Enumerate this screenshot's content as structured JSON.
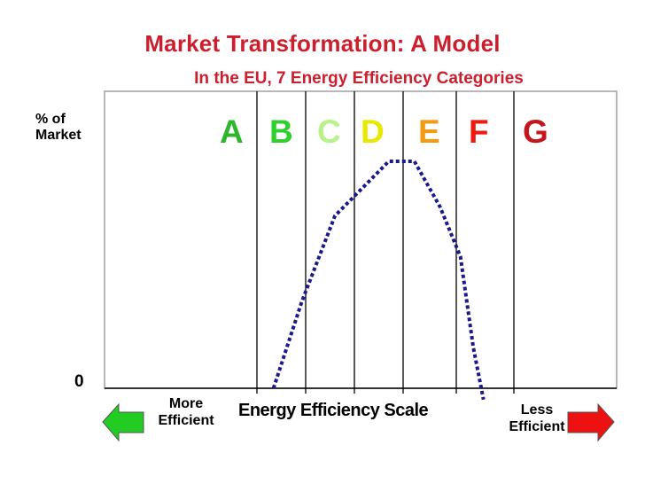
{
  "title": "Market Transformation: A Model",
  "subtitle": "In the EU, 7 Energy Efficiency Categories",
  "y_axis_label": "% of Market",
  "y_zero_label": "0",
  "x_axis_label": "Energy Efficiency Scale",
  "left_arrow_label": "More Efficient",
  "right_arrow_label": "Less Efficient",
  "categories": [
    {
      "letter": "A",
      "color": "#2db52d"
    },
    {
      "letter": "B",
      "color": "#2fcf2f"
    },
    {
      "letter": "C",
      "color": "#b8f28a"
    },
    {
      "letter": "D",
      "color": "#e8e800"
    },
    {
      "letter": "E",
      "color": "#f39a13"
    },
    {
      "letter": "F",
      "color": "#ee1c10"
    },
    {
      "letter": "G",
      "color": "#c3161d"
    }
  ],
  "colors": {
    "curve": "#1a1a8c",
    "left_arrow": "#22cc22",
    "right_arrow": "#ee1111",
    "axis": "#000000",
    "frame": "#a0a0a0"
  },
  "chart_data": {
    "type": "line",
    "series": [
      {
        "x": [
          3.3,
          3.85,
          4.5,
          5.55,
          6.05,
          6.55,
          6.95,
          7.2,
          7.4
        ],
        "y": [
          0,
          0.38,
          0.76,
          1.0,
          1.0,
          0.8,
          0.58,
          0.18,
          -0.05
        ]
      }
    ],
    "xlim": [
      0,
      10
    ],
    "ylim": [
      0,
      1
    ],
    "grid": false
  }
}
